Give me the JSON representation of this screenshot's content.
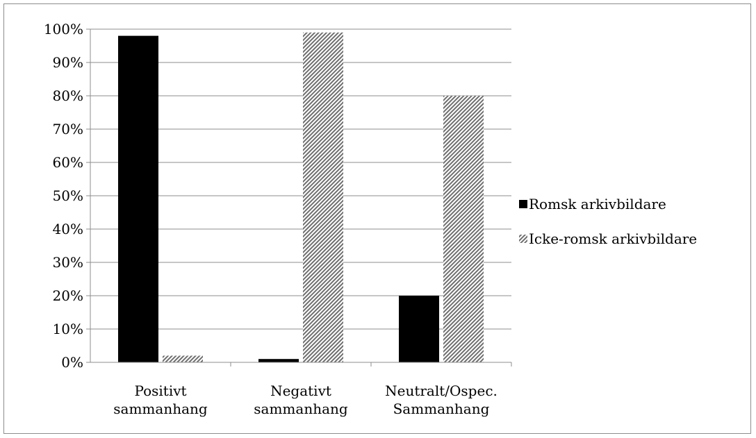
{
  "chart_data": {
    "type": "bar",
    "title": "",
    "xlabel": "",
    "ylabel": "",
    "ylim": [
      0,
      100
    ],
    "ytick_step": 10,
    "ytick_suffix": "%",
    "grid": true,
    "legend_position": "right",
    "categories": [
      [
        "Positivt",
        "sammanhang"
      ],
      [
        "Negativt",
        "sammanhang"
      ],
      [
        "Neutralt/Ospec.",
        "Sammanhang"
      ]
    ],
    "series": [
      {
        "name": "Romsk arkivbildare",
        "values": [
          98,
          1,
          20
        ],
        "fill": "solid",
        "color": "#000000"
      },
      {
        "name": "Icke-romsk arkivbildare",
        "values": [
          2,
          99,
          80
        ],
        "fill": "diagonal-hatch",
        "color": "#7f7f7f"
      }
    ]
  }
}
